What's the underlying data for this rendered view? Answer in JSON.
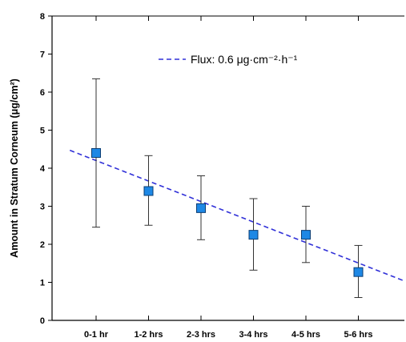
{
  "chart_data": {
    "type": "scatter",
    "categories": [
      "0-1 hr",
      "1-2 hrs",
      "2-3 hrs",
      "3-4 hrs",
      "4-5 hrs",
      "5-6 hrs"
    ],
    "series": [
      {
        "values": [
          4.4,
          3.4,
          2.95,
          2.25,
          2.25,
          1.27
        ],
        "error_upper": [
          6.35,
          4.33,
          3.8,
          3.2,
          3.0,
          1.97
        ],
        "error_lower": [
          2.45,
          2.5,
          2.12,
          1.32,
          1.52,
          0.6
        ],
        "color": "#1e88e5",
        "marker": "square"
      }
    ],
    "trendline": {
      "label": "Flux: 0.6 μg·cm⁻²·h⁻¹",
      "start": [
        0.5,
        4.47
      ],
      "end": [
        6.85,
        1.05
      ],
      "color": "#3030d8",
      "style": "dashed"
    },
    "title": "",
    "xlabel": "",
    "ylabel": "Amount in Stratum Corneum (μg/cm²)",
    "ylim": [
      0,
      8
    ],
    "yticks": [
      "0",
      "1",
      "2",
      "3",
      "4",
      "5",
      "6",
      "7",
      "8"
    ],
    "grid": false,
    "legend_position": "top-center"
  }
}
